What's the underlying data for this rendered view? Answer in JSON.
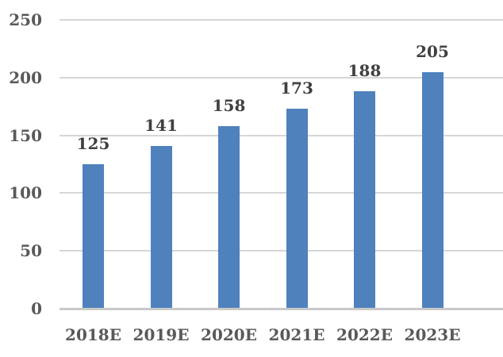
{
  "chart_data": {
    "type": "bar",
    "title": "",
    "xlabel": "",
    "ylabel": "",
    "categories": [
      "2018E",
      "2019E",
      "2020E",
      "2021E",
      "2022E",
      "2023E"
    ],
    "values": [
      125,
      141,
      158,
      173,
      188,
      205
    ],
    "ylim": [
      0,
      250
    ],
    "yticks": [
      0,
      50,
      100,
      150,
      200,
      250
    ],
    "grid": true,
    "legend": "none",
    "data_labels": true,
    "colors": {
      "bar": "#4F81BD",
      "grid": "#D6D6D6",
      "axis": "#C9C9C9",
      "tick_label": "#595959",
      "value_label": "#404040",
      "background": "#FFFFFF"
    }
  }
}
